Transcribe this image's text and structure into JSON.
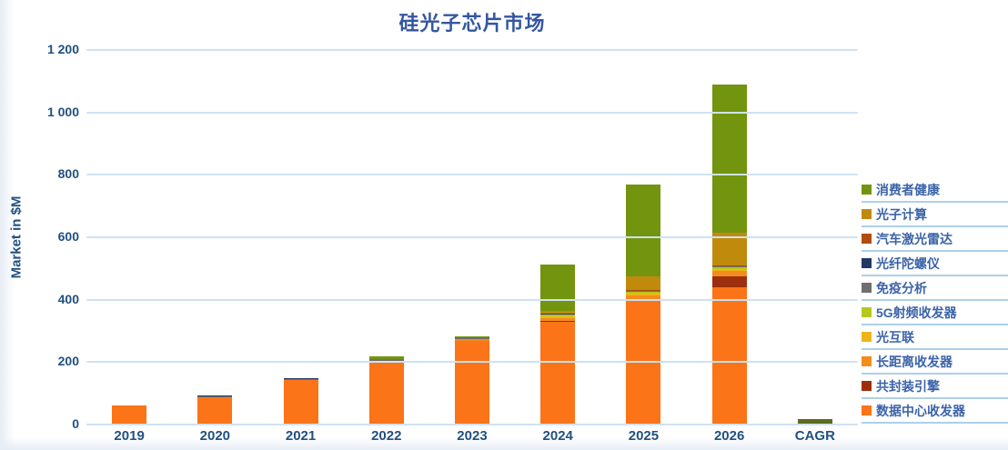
{
  "style": {
    "title_color": "#34569f",
    "axis_text_color": "#215080",
    "legend_text_color": "#3b63a8",
    "gridline_color": "#cfe2f4",
    "legend_divider_color": "#aecfe9"
  },
  "chart_data": {
    "type": "bar",
    "subtype": "stacked",
    "title": "硅光子芯片市场",
    "ylabel": "Market in $M",
    "xlabel": "",
    "ylim": [
      0,
      1200
    ],
    "grid": true,
    "legend_position": "right",
    "legend_order": "top-of-stack-first",
    "y_ticks": [
      {
        "label": "0",
        "value": 0
      },
      {
        "label": "200",
        "value": 200
      },
      {
        "label": "400",
        "value": 400
      },
      {
        "label": "600",
        "value": 600
      },
      {
        "label": "800",
        "value": 800
      },
      {
        "label": "1 000",
        "value": 1000
      },
      {
        "label": "1 200",
        "value": 1200
      }
    ],
    "categories": [
      "2019",
      "2020",
      "2021",
      "2022",
      "2023",
      "2024",
      "2025",
      "2026",
      "CAGR"
    ],
    "series": [
      {
        "name": "数据中心收发器",
        "color": "#fb7418",
        "values": [
          60,
          88,
          142,
          203,
          268,
          330,
          395,
          440,
          0
        ]
      },
      {
        "name": "共封装引擎",
        "color": "#9e2f0e",
        "values": [
          0,
          0,
          0,
          0,
          0,
          3,
          8,
          35,
          0
        ]
      },
      {
        "name": "长距离收发器",
        "color": "#f28c1e",
        "values": [
          0,
          0,
          0,
          0,
          5,
          8,
          10,
          17,
          0
        ]
      },
      {
        "name": "光互联",
        "color": "#f0b41a",
        "values": [
          0,
          0,
          0,
          0,
          0,
          7,
          7,
          7,
          0
        ]
      },
      {
        "name": "5G射频收发器",
        "color": "#b4c91c",
        "values": [
          0,
          0,
          0,
          2,
          0,
          4,
          6,
          5,
          0
        ]
      },
      {
        "name": "免疫分析",
        "color": "#6f6f6f",
        "values": [
          2,
          3,
          4,
          4,
          6,
          2,
          2,
          2,
          0
        ]
      },
      {
        "name": "光纤陀螺仪",
        "color": "#1f3864",
        "values": [
          0,
          2,
          3,
          2,
          2,
          1,
          1,
          2,
          0
        ]
      },
      {
        "name": "汽车激光雷达",
        "color": "#b04c10",
        "values": [
          0,
          0,
          0,
          0,
          0,
          0,
          1,
          3,
          0
        ]
      },
      {
        "name": "光子计算",
        "color": "#c08a0c",
        "values": [
          0,
          0,
          0,
          0,
          0,
          9,
          45,
          105,
          0
        ]
      },
      {
        "name": "消费者健康",
        "color": "#72940e",
        "values": [
          0,
          0,
          0,
          8,
          2,
          148,
          295,
          474,
          0
        ]
      }
    ],
    "totals": [
      62,
      93,
      149,
      219,
      283,
      512,
      770,
      1090,
      17
    ],
    "cagr_bar": {
      "category": "CAGR",
      "value": 17,
      "color": "#5e6b1f"
    }
  }
}
